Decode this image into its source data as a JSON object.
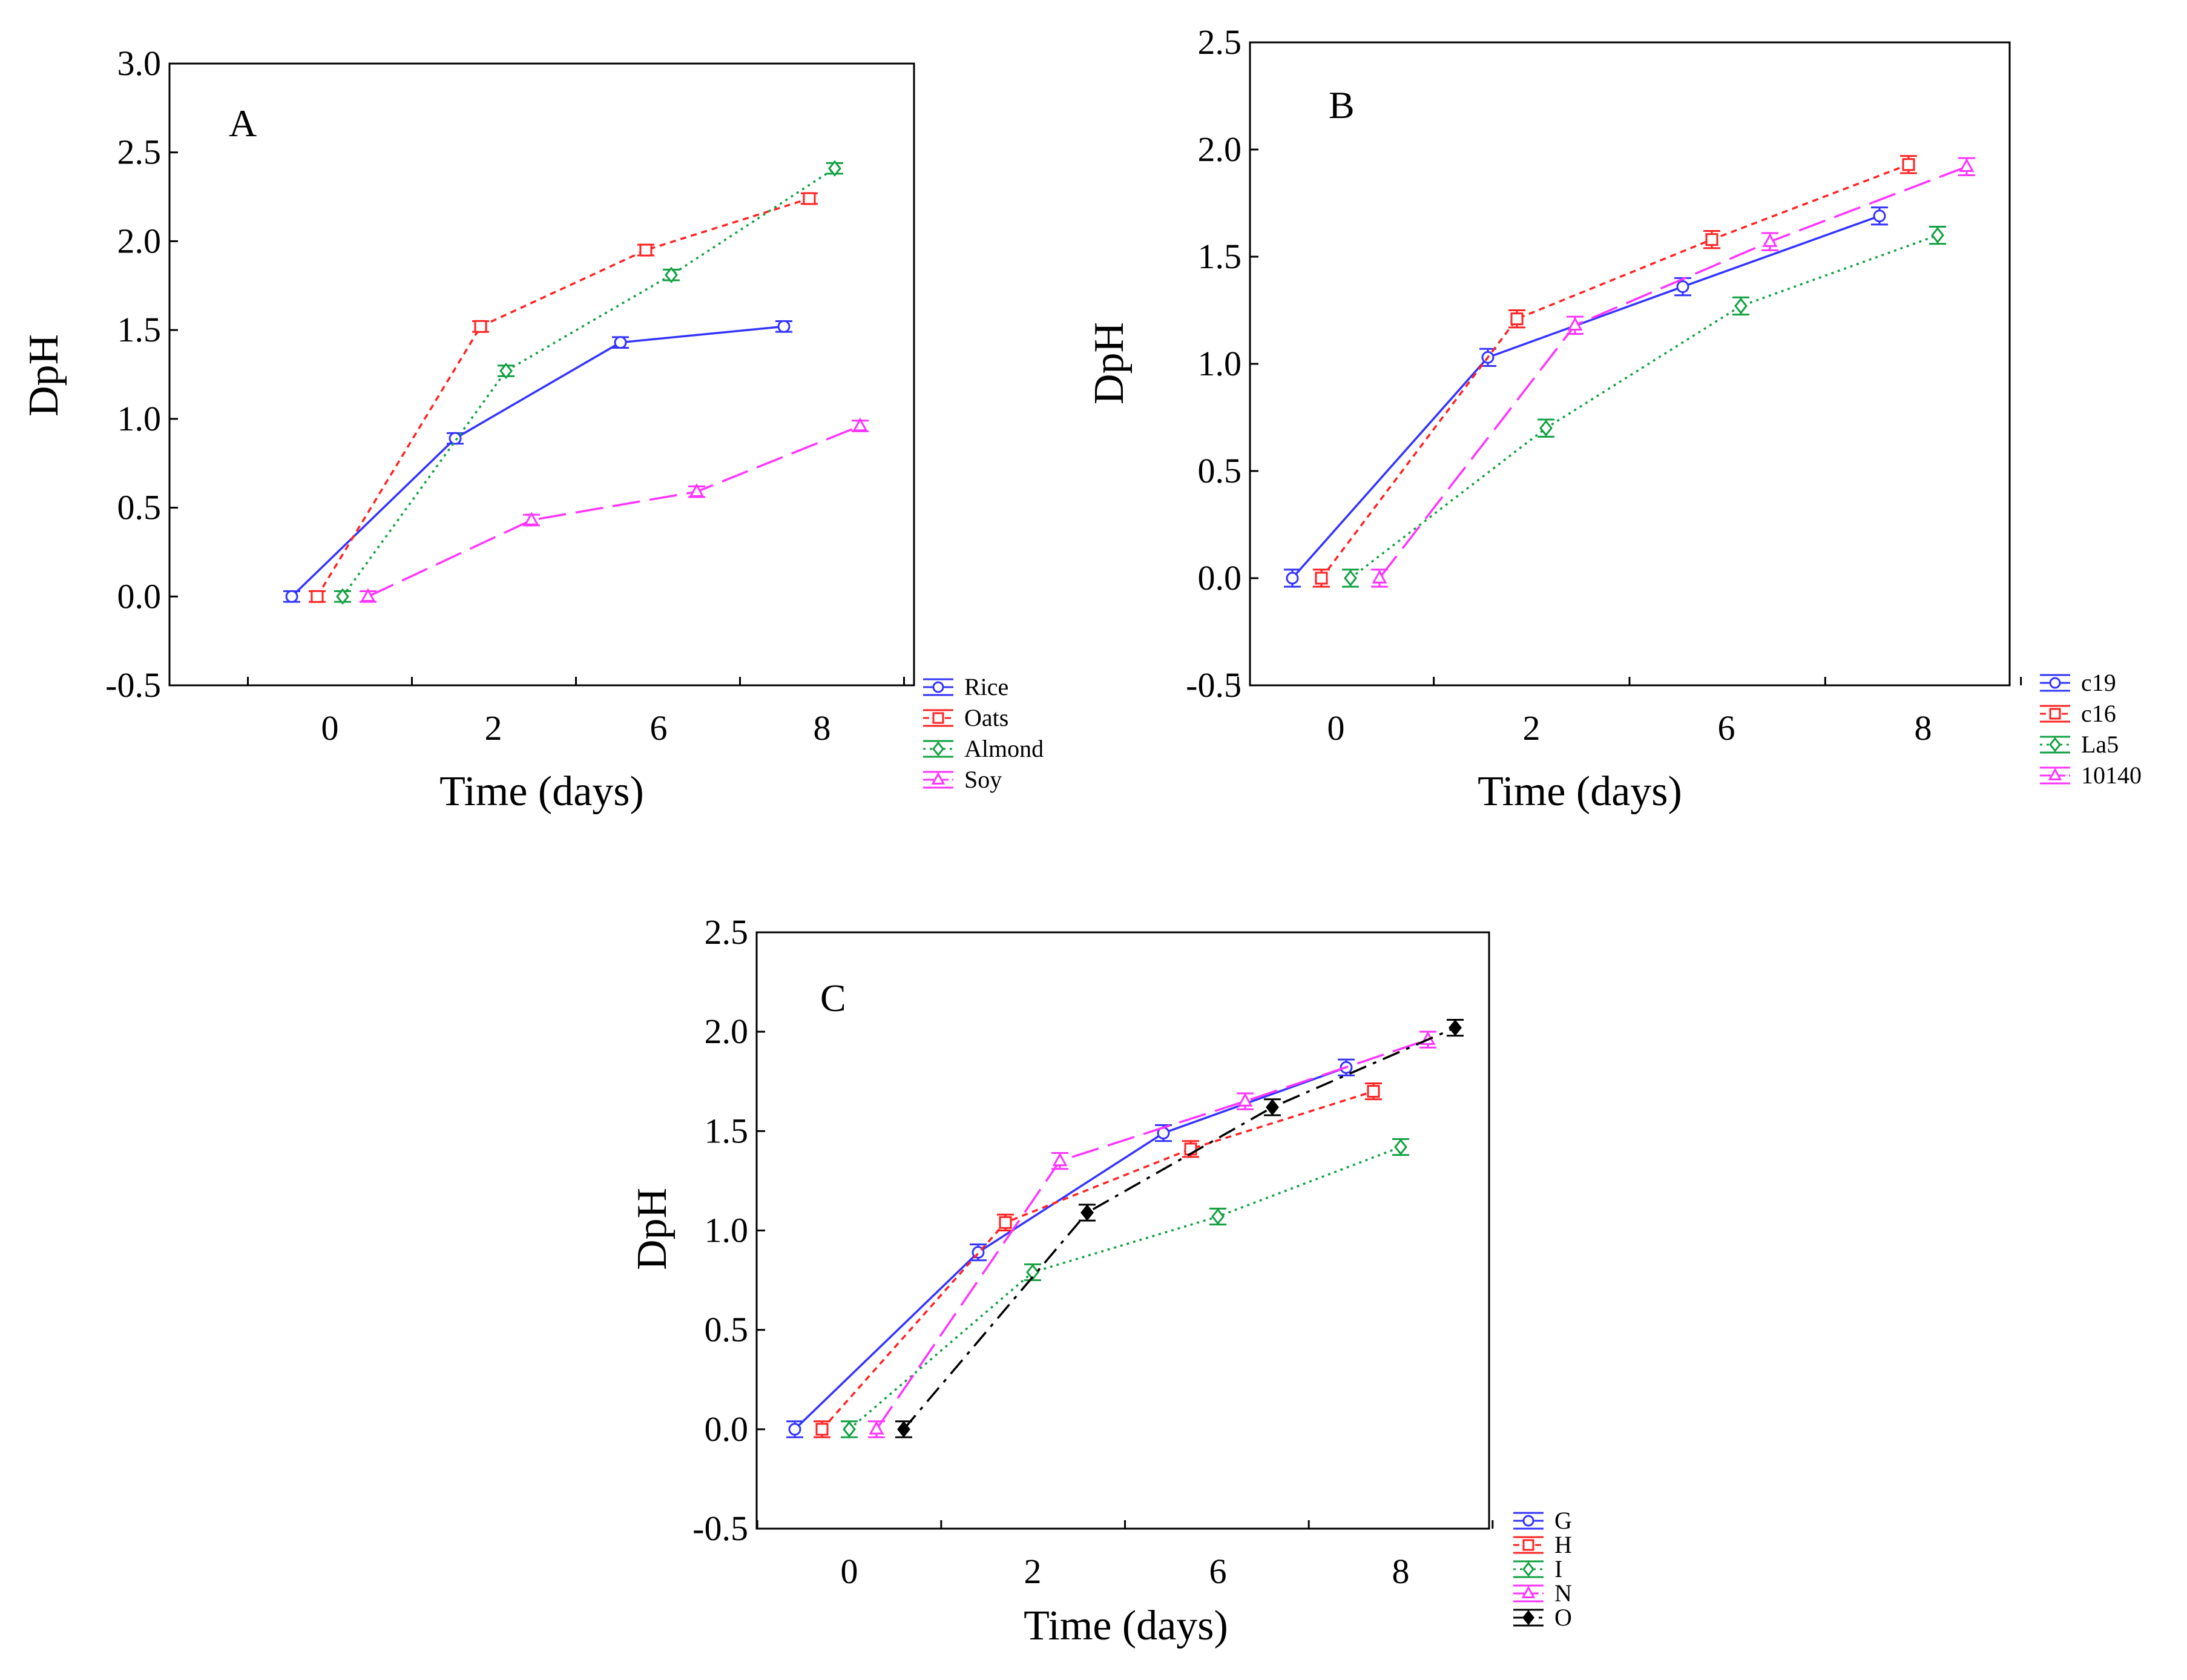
{
  "figure": {
    "panels": [
      {
        "letter": "A",
        "xlabel": "Time (days)",
        "ylabel": "DpH"
      },
      {
        "letter": "B",
        "xlabel": "Time (days)",
        "ylabel": "DpH"
      },
      {
        "letter": "C",
        "xlabel": "Time (days)",
        "ylabel": "DpH"
      }
    ]
  },
  "chart_data": [
    {
      "type": "line",
      "panel": "A",
      "title": "A",
      "xlabel": "Time (days)",
      "ylabel": "DpH",
      "categories": [
        "0",
        "2",
        "6",
        "8"
      ],
      "ylim": [
        -0.5,
        3.0
      ],
      "yticks": [
        "3.0",
        "2.5",
        "2.0",
        "1.5",
        "1.0",
        "0.5",
        "0.0",
        "-0.5"
      ],
      "legend_position": "outside-bottom-right",
      "series": [
        {
          "name": "Rice",
          "color": "#3333ff",
          "dash": "solid",
          "marker": "circle",
          "values": [
            0.0,
            0.89,
            1.43,
            1.52
          ],
          "errors": [
            0.03,
            0.03,
            0.03,
            0.03
          ]
        },
        {
          "name": "Oats",
          "color": "#ff2222",
          "dash": "dotted-fine",
          "marker": "square",
          "values": [
            0.0,
            1.52,
            1.95,
            2.24
          ],
          "errors": [
            0.03,
            0.03,
            0.03,
            0.03
          ]
        },
        {
          "name": "Almond",
          "color": "#11a040",
          "dash": "dotted",
          "marker": "diamond",
          "values": [
            0.0,
            1.27,
            1.81,
            2.41
          ],
          "errors": [
            0.03,
            0.03,
            0.03,
            0.03
          ]
        },
        {
          "name": "Soy",
          "color": "#ff33ff",
          "dash": "long-dash",
          "marker": "triangle",
          "values": [
            0.0,
            0.43,
            0.59,
            0.96
          ],
          "errors": [
            0.03,
            0.03,
            0.03,
            0.03
          ]
        }
      ]
    },
    {
      "type": "line",
      "panel": "B",
      "title": "B",
      "xlabel": "Time (days)",
      "ylabel": "DpH",
      "categories": [
        "0",
        "2",
        "6",
        "8"
      ],
      "ylim": [
        -0.5,
        2.5
      ],
      "yticks": [
        "2.5",
        "2.0",
        "1.5",
        "1.0",
        "0.5",
        "0.0",
        "-0.5"
      ],
      "legend_position": "outside-bottom-right",
      "series": [
        {
          "name": "c19",
          "color": "#3333ff",
          "dash": "solid",
          "marker": "circle",
          "values": [
            0.0,
            1.03,
            1.36,
            1.69
          ],
          "errors": [
            0.04,
            0.04,
            0.04,
            0.04
          ]
        },
        {
          "name": "c16",
          "color": "#ff2222",
          "dash": "dotted-fine",
          "marker": "square",
          "values": [
            0.0,
            1.21,
            1.58,
            1.93
          ],
          "errors": [
            0.04,
            0.04,
            0.04,
            0.04
          ]
        },
        {
          "name": "La5",
          "color": "#11a040",
          "dash": "dotted",
          "marker": "diamond",
          "values": [
            0.0,
            0.7,
            1.27,
            1.6
          ],
          "errors": [
            0.04,
            0.04,
            0.04,
            0.04
          ]
        },
        {
          "name": "10140",
          "color": "#ff33ff",
          "dash": "long-dash",
          "marker": "triangle",
          "values": [
            0.0,
            1.18,
            1.57,
            1.92
          ],
          "errors": [
            0.04,
            0.04,
            0.04,
            0.04
          ]
        }
      ]
    },
    {
      "type": "line",
      "panel": "C",
      "title": "C",
      "xlabel": "Time (days)",
      "ylabel": "DpH",
      "categories": [
        "0",
        "2",
        "6",
        "8"
      ],
      "ylim": [
        -0.5,
        2.5
      ],
      "yticks": [
        "2.5",
        "2.0",
        "1.5",
        "1.0",
        "0.5",
        "0.0",
        "-0.5"
      ],
      "legend_position": "outside-bottom-right",
      "series": [
        {
          "name": "G",
          "color": "#3333ff",
          "dash": "solid",
          "marker": "circle",
          "values": [
            0.0,
            0.89,
            1.49,
            1.82
          ],
          "errors": [
            0.04,
            0.04,
            0.04,
            0.04
          ]
        },
        {
          "name": "H",
          "color": "#ff2222",
          "dash": "dotted-fine",
          "marker": "square",
          "values": [
            0.0,
            1.04,
            1.41,
            1.7
          ],
          "errors": [
            0.04,
            0.04,
            0.04,
            0.04
          ]
        },
        {
          "name": "I",
          "color": "#11a040",
          "dash": "dotted",
          "marker": "diamond",
          "values": [
            0.0,
            0.79,
            1.07,
            1.42
          ],
          "errors": [
            0.04,
            0.04,
            0.04,
            0.04
          ]
        },
        {
          "name": "N",
          "color": "#ff33ff",
          "dash": "long-dash",
          "marker": "triangle",
          "values": [
            0.0,
            1.35,
            1.65,
            1.96
          ],
          "errors": [
            0.04,
            0.04,
            0.04,
            0.04
          ]
        },
        {
          "name": "O",
          "color": "#000000",
          "dash": "dash-dot",
          "marker": "filled-diamond",
          "values": [
            0.0,
            1.09,
            1.62,
            2.02
          ],
          "errors": [
            0.04,
            0.04,
            0.04,
            0.04
          ]
        }
      ]
    }
  ]
}
